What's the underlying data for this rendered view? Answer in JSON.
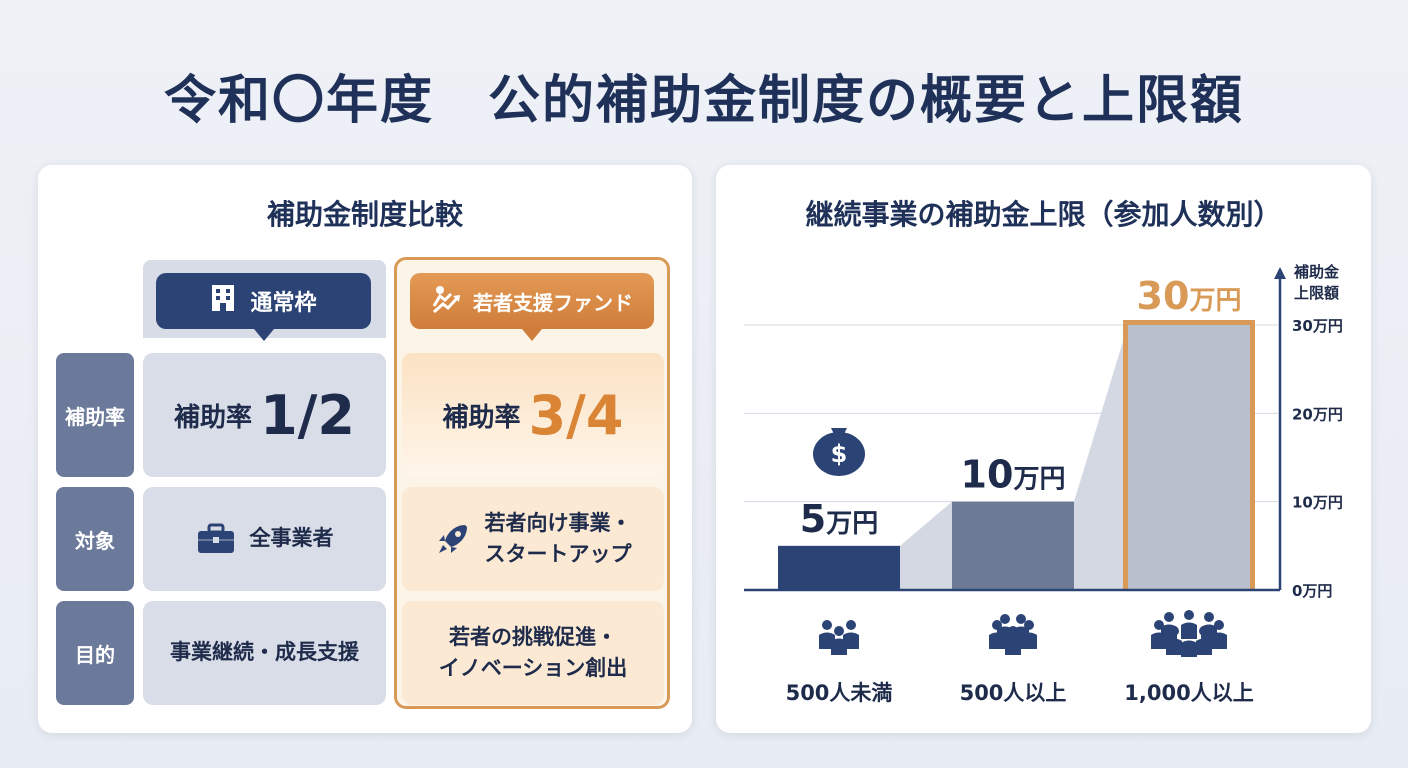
{
  "title": "令和〇年度　公的補助金制度の概要と上限額",
  "comparison": {
    "title": "補助金制度比較",
    "columns": {
      "normal": "通常枠",
      "youth": "若者支援ファンド"
    },
    "rows": [
      {
        "label": "補助率",
        "normal_word": "補助率",
        "normal_value": "1/2",
        "youth_word": "補助率",
        "youth_value": "3/4"
      },
      {
        "label": "対象",
        "normal": "全事業者",
        "youth_line1": "若者向け事業・",
        "youth_line2": "スタートアップ"
      },
      {
        "label": "目的",
        "normal": "事業継続・成長支援",
        "youth_line1": "若者の挑戦促進・",
        "youth_line2": "イノベーション創出"
      }
    ],
    "colors": {
      "navy": "#2c4475",
      "orange": "#d98535",
      "label_bg": "#6b7a9a"
    }
  },
  "chart_data": {
    "type": "bar",
    "title": "継続事業の補助金上限（参加人数別）",
    "ylabel": "補助金上限額",
    "ylabel_lines": [
      "補助金",
      "上限額"
    ],
    "categories": [
      "500人未満",
      "500人以上",
      "1,000人以上"
    ],
    "values": [
      5,
      10,
      30
    ],
    "value_labels": [
      "5万円",
      "10万円",
      "30万円"
    ],
    "unit": "万円",
    "yticks": [
      0,
      10,
      20,
      30
    ],
    "ytick_labels": [
      "0万円",
      "10万円",
      "20万円",
      "30万円"
    ],
    "ylim": [
      0,
      30
    ],
    "grid": true,
    "colors": [
      "#2c4475",
      "#6d7a96",
      "#b9bfcd"
    ],
    "highlight_color": "#d99a58",
    "icons": [
      "money-bag-icon",
      "people-small-group-icon",
      "people-medium-group-icon",
      "people-large-group-icon"
    ]
  }
}
